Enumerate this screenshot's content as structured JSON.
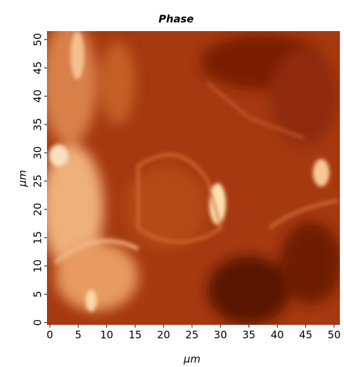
{
  "chart_data": {
    "type": "image",
    "title": "Phase",
    "x_label": "μm",
    "y_label": "μm",
    "xlim": [
      -0.5,
      51
    ],
    "ylim": [
      -0.4,
      51.5
    ],
    "xticks": [
      0,
      5,
      10,
      15,
      20,
      25,
      30,
      35,
      40,
      45,
      50
    ],
    "yticks": [
      0,
      5,
      10,
      15,
      20,
      25,
      30,
      35,
      40,
      45,
      50
    ]
  }
}
